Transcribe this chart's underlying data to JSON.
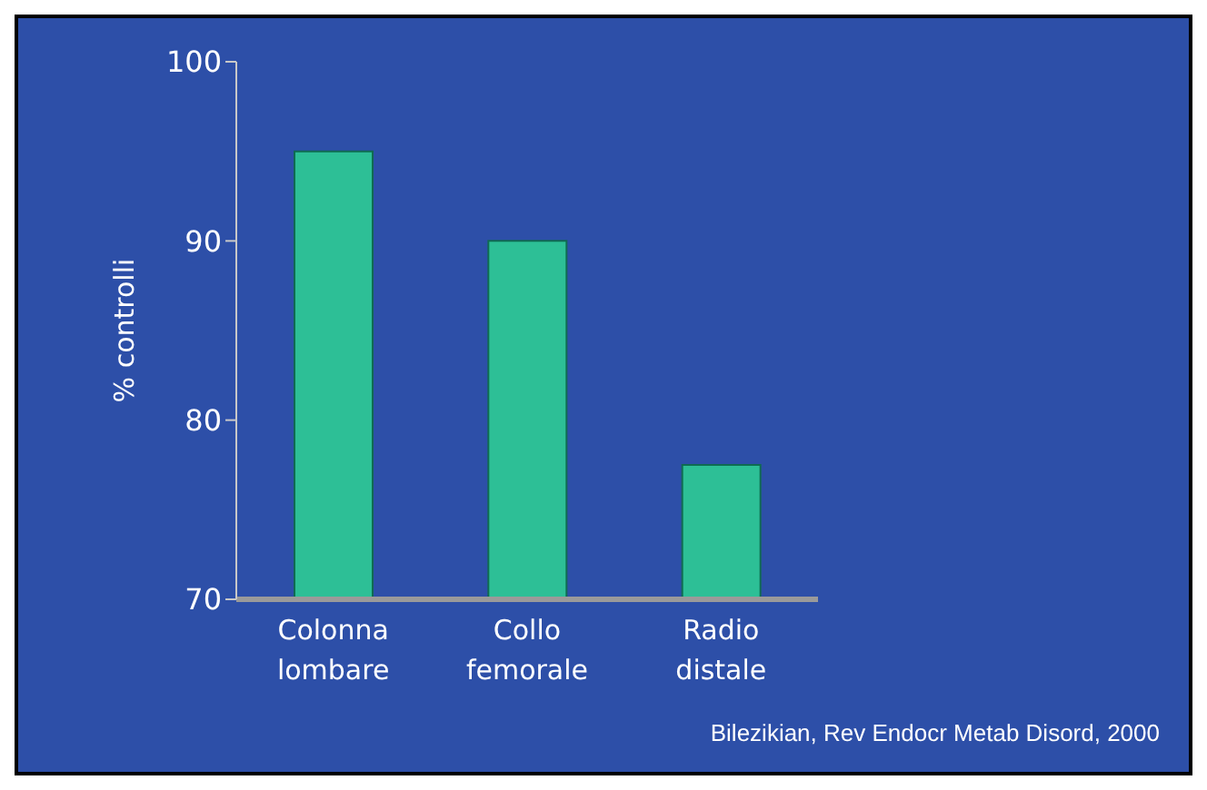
{
  "chart_data": {
    "type": "bar",
    "ylabel": "% controlli",
    "categories": [
      "Colonna lombare",
      "Collo femorale",
      "Radio distale"
    ],
    "values": [
      95,
      90,
      77.5
    ],
    "color": "#2dbf96",
    "ylim": [
      70,
      100
    ],
    "yticks": [
      70,
      80,
      90,
      100
    ],
    "grid": false,
    "annotations": [
      "Bilezikian, Rev Endocr Metab Disord, 2000"
    ]
  }
}
